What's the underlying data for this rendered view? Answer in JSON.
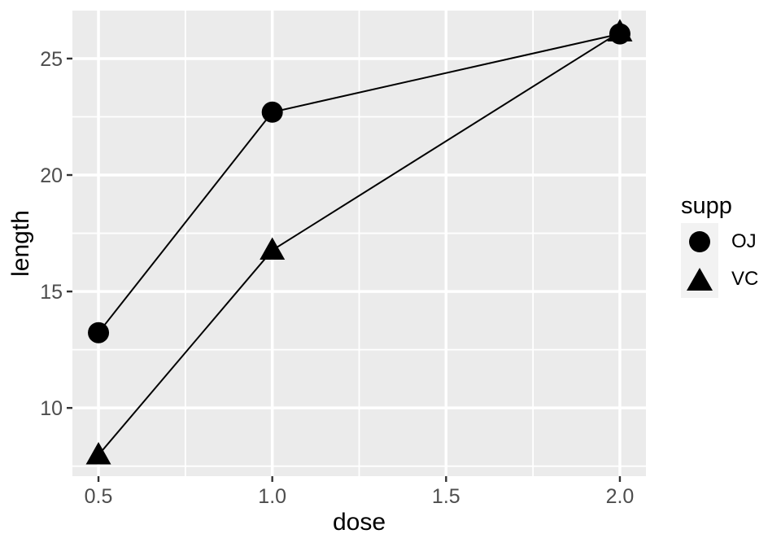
{
  "chart_data": {
    "type": "line",
    "title": "",
    "xlabel": "dose",
    "ylabel": "length",
    "x": [
      0.5,
      1.0,
      2.0
    ],
    "series": [
      {
        "name": "OJ",
        "marker": "circle",
        "values": [
          13.23,
          22.7,
          26.06
        ]
      },
      {
        "name": "VC",
        "marker": "triangle",
        "values": [
          7.98,
          16.77,
          26.14
        ]
      }
    ],
    "xlim": [
      0.425,
      2.075
    ],
    "ylim": [
      7.07,
      27.06
    ],
    "x_ticks": {
      "values": [
        0.5,
        1.0,
        1.5,
        2.0
      ],
      "labels": [
        "0.5",
        "1.0",
        "1.5",
        "2.0"
      ]
    },
    "y_ticks": {
      "values": [
        10,
        15,
        20,
        25
      ],
      "labels": [
        "10",
        "15",
        "20",
        "25"
      ]
    },
    "grid": "on",
    "legend": {
      "title": "supp",
      "position": "right",
      "items": [
        {
          "label": "OJ",
          "marker": "circle"
        },
        {
          "label": "VC",
          "marker": "triangle"
        }
      ]
    },
    "colors": {
      "background": "#FFFFFF",
      "panel_bg": "#EBEBEB",
      "grid": "#FFFFFF",
      "series": "#000000",
      "tick_label": "#4D4D4D",
      "tick_mark": "#333333",
      "axis_title": "#000000",
      "legend_key_bg": "#F2F2F2"
    }
  }
}
